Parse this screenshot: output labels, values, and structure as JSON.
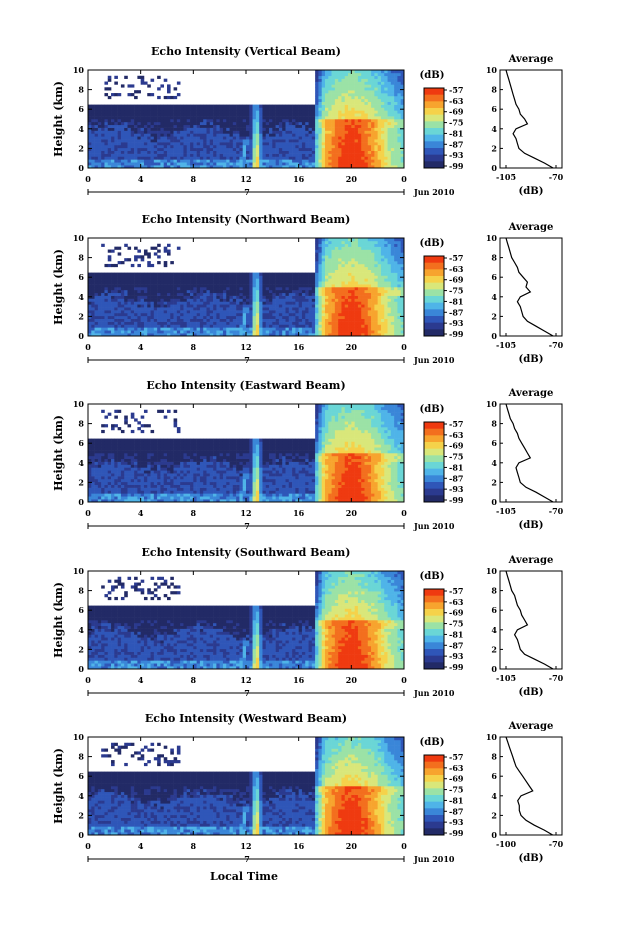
{
  "chart_data": [
    {
      "type": "heatmap",
      "title": "Echo Intensity (Vertical Beam)",
      "ylabel": "Height (km)",
      "x_ticks": [
        "0",
        "4",
        "8",
        "12",
        "16",
        "20",
        "0"
      ],
      "y_ticks": [
        "0",
        "2",
        "4",
        "6",
        "8",
        "10"
      ],
      "xlim": [
        0,
        24
      ],
      "ylim": [
        0,
        10
      ],
      "day_label": "7",
      "date_label": "Jun 2010",
      "colorbar": {
        "unit": "(dB)",
        "ticks": [
          "-57",
          "-63",
          "-69",
          "-75",
          "-81",
          "-87",
          "-93",
          "-99"
        ]
      },
      "average": {
        "title": "Average",
        "xlabel": "(dB)",
        "x_ticks": [
          "-105",
          "-70"
        ],
        "xlim": [
          -105,
          -70
        ],
        "profile": [
          [
            -72,
            0
          ],
          [
            -78,
            0.5
          ],
          [
            -85,
            1
          ],
          [
            -92,
            1.5
          ],
          [
            -96,
            2
          ],
          [
            -97,
            2.5
          ],
          [
            -98,
            3
          ],
          [
            -100,
            3.5
          ],
          [
            -98,
            4
          ],
          [
            -90,
            4.5
          ],
          [
            -92,
            5
          ],
          [
            -95,
            5.5
          ],
          [
            -96,
            6
          ],
          [
            -98,
            6.5
          ],
          [
            -99,
            7
          ],
          [
            -100,
            7.5
          ],
          [
            -101,
            8
          ],
          [
            -102,
            8.5
          ],
          [
            -103,
            9
          ],
          [
            -104,
            9.5
          ],
          [
            -105,
            10
          ]
        ]
      }
    },
    {
      "type": "heatmap",
      "title": "Echo Intensity (Northward Beam)",
      "ylabel": "Height (km)",
      "x_ticks": [
        "0",
        "4",
        "8",
        "12",
        "16",
        "20",
        "0"
      ],
      "y_ticks": [
        "0",
        "2",
        "4",
        "6",
        "8",
        "10"
      ],
      "xlim": [
        0,
        24
      ],
      "ylim": [
        0,
        10
      ],
      "day_label": "7",
      "date_label": "Jun 2010",
      "colorbar": {
        "unit": "(dB)",
        "ticks": [
          "-57",
          "-63",
          "-69",
          "-75",
          "-81",
          "-87",
          "-93",
          "-99"
        ]
      },
      "average": {
        "title": "Average",
        "xlabel": "(dB)",
        "x_ticks": [
          "-105",
          "-70"
        ],
        "xlim": [
          -105,
          -70
        ],
        "profile": [
          [
            -72,
            0
          ],
          [
            -78,
            0.5
          ],
          [
            -84,
            1
          ],
          [
            -90,
            1.5
          ],
          [
            -93,
            2
          ],
          [
            -94,
            2.5
          ],
          [
            -95,
            3
          ],
          [
            -97,
            3.5
          ],
          [
            -95,
            4
          ],
          [
            -88,
            4.5
          ],
          [
            -91,
            5
          ],
          [
            -90,
            5.5
          ],
          [
            -93,
            6
          ],
          [
            -96,
            6.5
          ],
          [
            -97,
            7
          ],
          [
            -99,
            7.5
          ],
          [
            -101,
            8
          ],
          [
            -102,
            8.5
          ],
          [
            -103,
            9
          ],
          [
            -104,
            9.5
          ],
          [
            -105,
            10
          ]
        ]
      }
    },
    {
      "type": "heatmap",
      "title": "Echo Intensity (Eastward Beam)",
      "ylabel": "Height (km)",
      "x_ticks": [
        "0",
        "4",
        "8",
        "12",
        "16",
        "20",
        "0"
      ],
      "y_ticks": [
        "0",
        "2",
        "4",
        "6",
        "8",
        "10"
      ],
      "xlim": [
        0,
        24
      ],
      "ylim": [
        0,
        10
      ],
      "day_label": "7",
      "date_label": "Jun 2010",
      "colorbar": {
        "unit": "(dB)",
        "ticks": [
          "-57",
          "-63",
          "-69",
          "-75",
          "-81",
          "-87",
          "-93",
          "-99"
        ]
      },
      "average": {
        "title": "Average",
        "xlabel": "(dB)",
        "x_ticks": [
          "-105",
          "-70"
        ],
        "xlim": [
          -105,
          -70
        ],
        "profile": [
          [
            -72,
            0
          ],
          [
            -78,
            0.5
          ],
          [
            -84,
            1
          ],
          [
            -91,
            1.5
          ],
          [
            -95,
            2
          ],
          [
            -96,
            2.5
          ],
          [
            -97,
            3
          ],
          [
            -98,
            3.5
          ],
          [
            -96,
            4
          ],
          [
            -88,
            4.5
          ],
          [
            -90,
            5
          ],
          [
            -92,
            5.5
          ],
          [
            -94,
            6
          ],
          [
            -96,
            6.5
          ],
          [
            -97,
            7
          ],
          [
            -99,
            7.5
          ],
          [
            -100,
            8
          ],
          [
            -102,
            8.5
          ],
          [
            -103,
            9
          ],
          [
            -104,
            9.5
          ],
          [
            -105,
            10
          ]
        ]
      }
    },
    {
      "type": "heatmap",
      "title": "Echo Intensity (Southward Beam)",
      "ylabel": "Height (km)",
      "x_ticks": [
        "0",
        "4",
        "8",
        "12",
        "16",
        "20",
        "0"
      ],
      "y_ticks": [
        "0",
        "2",
        "4",
        "6",
        "8",
        "10"
      ],
      "xlim": [
        0,
        24
      ],
      "ylim": [
        0,
        10
      ],
      "day_label": "7",
      "date_label": "Jun 2010",
      "colorbar": {
        "unit": "(dB)",
        "ticks": [
          "-57",
          "-63",
          "-69",
          "-75",
          "-81",
          "-87",
          "-93",
          "-99"
        ]
      },
      "average": {
        "title": "Average",
        "xlabel": "(dB)",
        "x_ticks": [
          "-105",
          "-70"
        ],
        "xlim": [
          -105,
          -70
        ],
        "profile": [
          [
            -72,
            0
          ],
          [
            -78,
            0.5
          ],
          [
            -85,
            1
          ],
          [
            -92,
            1.5
          ],
          [
            -95,
            2
          ],
          [
            -96,
            2.5
          ],
          [
            -97,
            3
          ],
          [
            -99,
            3.5
          ],
          [
            -97,
            4
          ],
          [
            -90,
            4.5
          ],
          [
            -92,
            5
          ],
          [
            -94,
            5.5
          ],
          [
            -95,
            6
          ],
          [
            -97,
            6.5
          ],
          [
            -98,
            7
          ],
          [
            -99,
            7.5
          ],
          [
            -101,
            8
          ],
          [
            -102,
            8.5
          ],
          [
            -103,
            9
          ],
          [
            -104,
            9.5
          ],
          [
            -105,
            10
          ]
        ]
      }
    },
    {
      "type": "heatmap",
      "title": "Echo Intensity (Westward Beam)",
      "ylabel": "Height (km)",
      "x_ticks": [
        "0",
        "4",
        "8",
        "12",
        "16",
        "20",
        "0"
      ],
      "y_ticks": [
        "0",
        "2",
        "4",
        "6",
        "8",
        "10"
      ],
      "xlim": [
        0,
        24
      ],
      "ylim": [
        0,
        10
      ],
      "day_label": "7",
      "date_label": "Jun 2010",
      "colorbar": {
        "unit": "(dB)",
        "ticks": [
          "-57",
          "-63",
          "-69",
          "-75",
          "-81",
          "-87",
          "-93",
          "-99"
        ]
      },
      "average": {
        "title": "Average",
        "xlabel": "(dB)",
        "x_ticks": [
          "-100",
          "-70"
        ],
        "xlim": [
          -100,
          -70
        ],
        "profile": [
          [
            -72,
            0
          ],
          [
            -77,
            0.5
          ],
          [
            -83,
            1
          ],
          [
            -88,
            1.5
          ],
          [
            -91,
            2
          ],
          [
            -92,
            2.5
          ],
          [
            -92,
            3
          ],
          [
            -93,
            3.5
          ],
          [
            -91,
            4
          ],
          [
            -84,
            4.5
          ],
          [
            -86,
            5
          ],
          [
            -88,
            5.5
          ],
          [
            -90,
            6
          ],
          [
            -92,
            6.5
          ],
          [
            -94,
            7
          ],
          [
            -95,
            7.5
          ],
          [
            -96,
            8
          ],
          [
            -97,
            8.5
          ],
          [
            -98,
            9
          ],
          [
            -99,
            9.5
          ],
          [
            -100,
            10
          ]
        ]
      }
    }
  ],
  "xlabel": "Local Time",
  "colors": {
    "no_data": "#ffffff",
    "scale": [
      "#222a66",
      "#2b3a8f",
      "#2f56b8",
      "#3a86d8",
      "#4fb4e8",
      "#6ad6d6",
      "#9be2a6",
      "#d9e77a",
      "#f5d24a",
      "#f7a42e",
      "#f36f1e",
      "#ef3a10"
    ]
  }
}
